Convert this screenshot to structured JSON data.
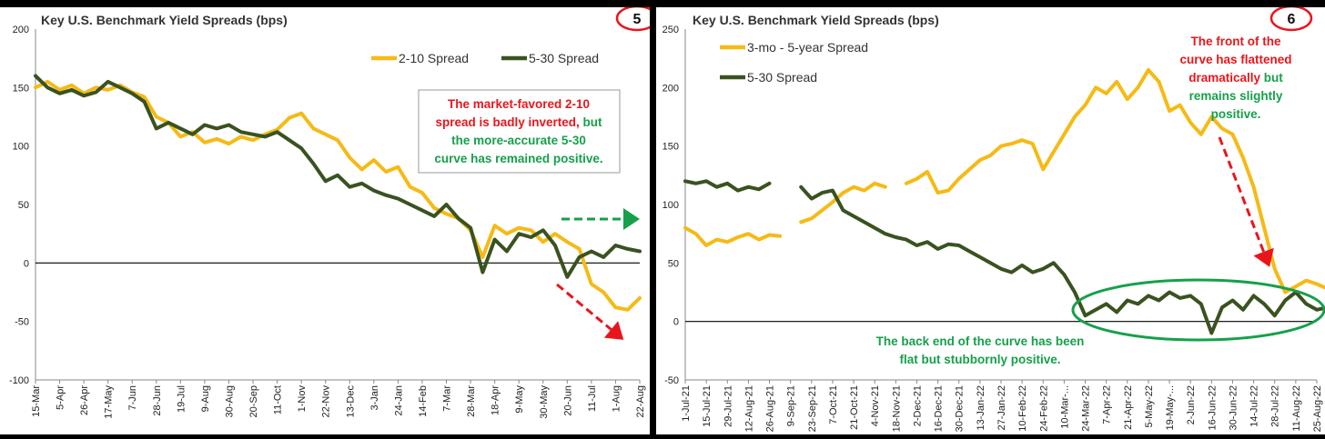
{
  "chart_data": [
    {
      "type": "line",
      "title": "Key U.S. Benchmark Yield Spreads (bps)",
      "page_badge": "5",
      "ylim": [
        -100,
        200
      ],
      "yticks": [
        -100,
        -50,
        0,
        50,
        100,
        150,
        200
      ],
      "categories": [
        "15-Mar",
        "5-Apr",
        "26-Apr",
        "17-May",
        "7-Jun",
        "28-Jun",
        "19-Jul",
        "9-Aug",
        "30-Aug",
        "20-Sep",
        "11-Oct",
        "1-Nov",
        "22-Nov",
        "13-Dec",
        "3-Jan",
        "24-Jan",
        "14-Feb",
        "7-Mar",
        "28-Mar",
        "18-Apr",
        "9-May",
        "30-May",
        "20-Jun",
        "11-Jul",
        "1-Aug",
        "22-Aug"
      ],
      "legend_position": "top-right",
      "grid": false,
      "series": [
        {
          "name": "2-10 Spread",
          "color": "#F5BA16",
          "points": [
            [
              0,
              150
            ],
            [
              0.5,
              155
            ],
            [
              1,
              148
            ],
            [
              1.5,
              152
            ],
            [
              2,
              145
            ],
            [
              2.5,
              150
            ],
            [
              3,
              148
            ],
            [
              3.5,
              152
            ],
            [
              4,
              146
            ],
            [
              4.5,
              142
            ],
            [
              5,
              125
            ],
            [
              5.5,
              120
            ],
            [
              6,
              108
            ],
            [
              6.5,
              112
            ],
            [
              7,
              103
            ],
            [
              7.5,
              106
            ],
            [
              8,
              102
            ],
            [
              8.5,
              108
            ],
            [
              9,
              105
            ],
            [
              9.5,
              110
            ],
            [
              10,
              114
            ],
            [
              10.5,
              124
            ],
            [
              11,
              128
            ],
            [
              11.5,
              115
            ],
            [
              12,
              110
            ],
            [
              12.5,
              105
            ],
            [
              13,
              90
            ],
            [
              13.5,
              80
            ],
            [
              14,
              88
            ],
            [
              14.5,
              78
            ],
            [
              15,
              82
            ],
            [
              15.5,
              65
            ],
            [
              16,
              60
            ],
            [
              16.5,
              47
            ],
            [
              17,
              42
            ],
            [
              17.5,
              38
            ],
            [
              18,
              28
            ],
            [
              18.5,
              5
            ],
            [
              19,
              32
            ],
            [
              19.5,
              25
            ],
            [
              20,
              30
            ],
            [
              20.5,
              28
            ],
            [
              21,
              18
            ],
            [
              21.5,
              25
            ],
            [
              22,
              18
            ],
            [
              22.5,
              12
            ],
            [
              23,
              -18
            ],
            [
              23.5,
              -25
            ],
            [
              24,
              -38
            ],
            [
              24.5,
              -40
            ],
            [
              25,
              -30
            ]
          ]
        },
        {
          "name": "5-30 Spread",
          "color": "#3A5220",
          "points": [
            [
              0,
              160
            ],
            [
              0.5,
              150
            ],
            [
              1,
              145
            ],
            [
              1.5,
              148
            ],
            [
              2,
              143
            ],
            [
              2.5,
              146
            ],
            [
              3,
              155
            ],
            [
              3.5,
              150
            ],
            [
              4,
              145
            ],
            [
              4.5,
              138
            ],
            [
              5,
              115
            ],
            [
              5.5,
              120
            ],
            [
              6,
              115
            ],
            [
              6.5,
              110
            ],
            [
              7,
              118
            ],
            [
              7.5,
              115
            ],
            [
              8,
              118
            ],
            [
              8.5,
              112
            ],
            [
              9,
              110
            ],
            [
              9.5,
              108
            ],
            [
              10,
              112
            ],
            [
              10.5,
              105
            ],
            [
              11,
              98
            ],
            [
              11.5,
              85
            ],
            [
              12,
              70
            ],
            [
              12.5,
              75
            ],
            [
              13,
              65
            ],
            [
              13.5,
              68
            ],
            [
              14,
              62
            ],
            [
              14.5,
              58
            ],
            [
              15,
              55
            ],
            [
              15.5,
              50
            ],
            [
              16,
              45
            ],
            [
              16.5,
              40
            ],
            [
              17,
              50
            ],
            [
              17.5,
              38
            ],
            [
              18,
              30
            ],
            [
              18.5,
              -8
            ],
            [
              19,
              20
            ],
            [
              19.5,
              10
            ],
            [
              20,
              25
            ],
            [
              20.5,
              22
            ],
            [
              21,
              28
            ],
            [
              21.5,
              15
            ],
            [
              22,
              -12
            ],
            [
              22.5,
              5
            ],
            [
              23,
              10
            ],
            [
              23.5,
              5
            ],
            [
              24,
              15
            ],
            [
              24.5,
              12
            ],
            [
              25,
              10
            ]
          ]
        }
      ],
      "annotations": [
        {
          "lines": [
            [
              {
                "text": "The market-favored 2-10",
                "color": "#E8161B"
              }
            ],
            [
              {
                "text": "spread is badly inverted, ",
                "color": "#E8161B"
              },
              {
                "text": "but",
                "color": "#16A04A"
              }
            ],
            [
              {
                "text": "the more-accurate 5-30",
                "color": "#16A04A"
              }
            ],
            [
              {
                "text": "curve has remained positive.",
                "color": "#16A04A"
              }
            ]
          ]
        }
      ]
    },
    {
      "type": "line",
      "title": "Key U.S. Benchmark Yield Spreads (bps)",
      "page_badge": "6",
      "ylim": [
        -50,
        250
      ],
      "yticks": [
        -50,
        0,
        50,
        100,
        150,
        200,
        250
      ],
      "categories": [
        "1-Jul-21",
        "15-Jul-21",
        "29-Jul-21",
        "12-Aug-21",
        "26-Aug-21",
        "9-Sep-21",
        "23-Sep-21",
        "7-Oct-21",
        "21-Oct-21",
        "4-Nov-21",
        "18-Nov-21",
        "2-Dec-21",
        "16-Dec-21",
        "30-Dec-21",
        "13-Jan-22",
        "27-Jan-22",
        "10-Feb-22",
        "24-Feb-22",
        "10-Mar-...",
        "24-Mar-22",
        "7-Apr-22",
        "21-Apr-22",
        "5-May-22",
        "19-May-...",
        "2-Jun-22",
        "16-Jun-22",
        "30-Jun-22",
        "14-Jul-22",
        "28-Jul-22",
        "11-Aug-22",
        "25-Aug-22"
      ],
      "legend_position": "top-left",
      "grid": false,
      "series": [
        {
          "name": "3-mo - 5-year Spread",
          "color": "#F5BA16",
          "points": [
            [
              0,
              80
            ],
            [
              0.5,
              75
            ],
            [
              1,
              65
            ],
            [
              1.5,
              70
            ],
            [
              2,
              68
            ],
            [
              2.5,
              72
            ],
            [
              3,
              75
            ],
            [
              3.5,
              70
            ],
            [
              4,
              74
            ],
            [
              4.5,
              73
            ],
            [
              5.5,
              85
            ],
            [
              6,
              88
            ],
            [
              6.5,
              95
            ],
            [
              7,
              102
            ],
            [
              7.5,
              110
            ],
            [
              8,
              115
            ],
            [
              8.5,
              112
            ],
            [
              9,
              118
            ],
            [
              9.5,
              115
            ],
            [
              10.5,
              118
            ],
            [
              11,
              122
            ],
            [
              11.5,
              128
            ],
            [
              12,
              110
            ],
            [
              12.5,
              112
            ],
            [
              13,
              122
            ],
            [
              13.5,
              130
            ],
            [
              14,
              138
            ],
            [
              14.5,
              142
            ],
            [
              15,
              150
            ],
            [
              15.5,
              152
            ],
            [
              16,
              155
            ],
            [
              16.5,
              152
            ],
            [
              17,
              130
            ],
            [
              17.5,
              145
            ],
            [
              18,
              160
            ],
            [
              18.5,
              175
            ],
            [
              19,
              185
            ],
            [
              19.5,
              200
            ],
            [
              20,
              195
            ],
            [
              20.5,
              205
            ],
            [
              21,
              190
            ],
            [
              21.5,
              200
            ],
            [
              22,
              215
            ],
            [
              22.5,
              205
            ],
            [
              23,
              180
            ],
            [
              23.5,
              185
            ],
            [
              24,
              170
            ],
            [
              24.5,
              160
            ],
            [
              25,
              175
            ],
            [
              25.5,
              165
            ],
            [
              26,
              160
            ],
            [
              26.5,
              140
            ],
            [
              27,
              115
            ],
            [
              27.5,
              80
            ],
            [
              28,
              45
            ],
            [
              28.5,
              25
            ],
            [
              29,
              30
            ],
            [
              29.5,
              35
            ],
            [
              30,
              32
            ],
            [
              30.5,
              28
            ]
          ]
        },
        {
          "name": "5-30 Spread",
          "color": "#3A5220",
          "points": [
            [
              0,
              120
            ],
            [
              0.5,
              118
            ],
            [
              1,
              120
            ],
            [
              1.5,
              115
            ],
            [
              2,
              118
            ],
            [
              2.5,
              112
            ],
            [
              3,
              115
            ],
            [
              3.5,
              113
            ],
            [
              4,
              118
            ],
            [
              5.5,
              115
            ],
            [
              6,
              105
            ],
            [
              6.5,
              110
            ],
            [
              7,
              112
            ],
            [
              7.5,
              95
            ],
            [
              8,
              90
            ],
            [
              8.5,
              85
            ],
            [
              9,
              80
            ],
            [
              9.5,
              75
            ],
            [
              10,
              72
            ],
            [
              10.5,
              70
            ],
            [
              11,
              65
            ],
            [
              11.5,
              68
            ],
            [
              12,
              62
            ],
            [
              12.5,
              66
            ],
            [
              13,
              65
            ],
            [
              13.5,
              60
            ],
            [
              14,
              55
            ],
            [
              14.5,
              50
            ],
            [
              15,
              45
            ],
            [
              15.5,
              42
            ],
            [
              16,
              48
            ],
            [
              16.5,
              42
            ],
            [
              17,
              45
            ],
            [
              17.5,
              50
            ],
            [
              18,
              40
            ],
            [
              18.5,
              25
            ],
            [
              19,
              5
            ],
            [
              19.5,
              10
            ],
            [
              20,
              15
            ],
            [
              20.5,
              8
            ],
            [
              21,
              18
            ],
            [
              21.5,
              15
            ],
            [
              22,
              22
            ],
            [
              22.5,
              18
            ],
            [
              23,
              25
            ],
            [
              23.5,
              20
            ],
            [
              24,
              22
            ],
            [
              24.5,
              15
            ],
            [
              25,
              -10
            ],
            [
              25.5,
              12
            ],
            [
              26,
              18
            ],
            [
              26.5,
              10
            ],
            [
              27,
              22
            ],
            [
              27.5,
              15
            ],
            [
              28,
              5
            ],
            [
              28.5,
              18
            ],
            [
              29,
              25
            ],
            [
              29.5,
              15
            ],
            [
              30,
              10
            ],
            [
              30.5,
              12
            ]
          ]
        }
      ],
      "annotations": [
        {
          "lines": [
            [
              {
                "text": "The front of the",
                "color": "#E8161B"
              }
            ],
            [
              {
                "text": "curve has flattened",
                "color": "#E8161B"
              }
            ],
            [
              {
                "text": "dramatically ",
                "color": "#E8161B"
              },
              {
                "text": "but",
                "color": "#16A04A"
              }
            ],
            [
              {
                "text": "remains slightly",
                "color": "#16A04A"
              }
            ],
            [
              {
                "text": "positive.",
                "color": "#16A04A"
              }
            ]
          ]
        },
        {
          "lines": [
            [
              {
                "text": "The back end of the curve has been",
                "color": "#16A04A"
              }
            ],
            [
              {
                "text": "flat but stubbornly positive.",
                "color": "#16A04A"
              }
            ]
          ]
        }
      ]
    }
  ]
}
